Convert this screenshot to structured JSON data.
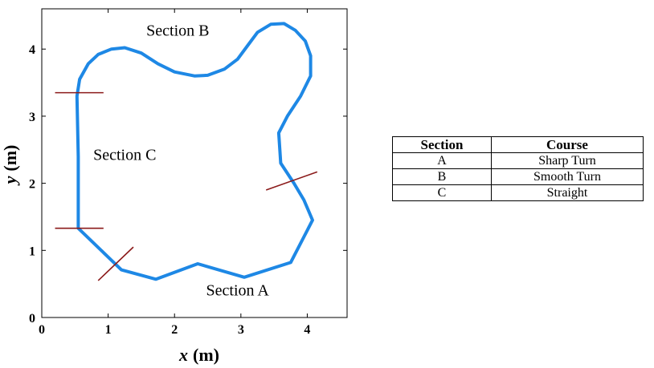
{
  "chart_data": {
    "type": "line",
    "title": "",
    "xlabel": {
      "var": "x",
      "unit": "(m)"
    },
    "ylabel": {
      "var": "y",
      "unit": "(m)"
    },
    "xlim": [
      0,
      4.6
    ],
    "ylim": [
      0,
      4.6
    ],
    "xticks": [
      "0",
      "1",
      "2",
      "3",
      "4"
    ],
    "yticks": [
      "0",
      "1",
      "2",
      "3",
      "4"
    ],
    "grid": false,
    "line_color": "#1e88e5",
    "marker_color": "#8b1a1a",
    "series": [
      {
        "points": [
          [
            0.55,
            1.33
          ],
          [
            0.55,
            2.4
          ],
          [
            0.53,
            3.3
          ],
          [
            0.57,
            3.55
          ],
          [
            0.7,
            3.78
          ],
          [
            0.85,
            3.92
          ],
          [
            1.05,
            4.0
          ],
          [
            1.25,
            4.02
          ],
          [
            1.5,
            3.94
          ],
          [
            1.75,
            3.78
          ],
          [
            2.0,
            3.66
          ],
          [
            2.3,
            3.6
          ],
          [
            2.5,
            3.61
          ],
          [
            2.75,
            3.7
          ],
          [
            2.95,
            3.85
          ],
          [
            3.1,
            4.05
          ],
          [
            3.25,
            4.25
          ],
          [
            3.45,
            4.37
          ],
          [
            3.65,
            4.38
          ],
          [
            3.82,
            4.28
          ],
          [
            3.97,
            4.12
          ],
          [
            4.05,
            3.9
          ],
          [
            4.05,
            3.6
          ],
          [
            3.9,
            3.3
          ],
          [
            3.7,
            3.0
          ],
          [
            3.57,
            2.75
          ],
          [
            3.6,
            2.3
          ],
          [
            3.8,
            2.0
          ],
          [
            3.95,
            1.75
          ],
          [
            4.08,
            1.45
          ],
          [
            3.75,
            0.82
          ],
          [
            3.05,
            0.6
          ],
          [
            2.35,
            0.8
          ],
          [
            1.72,
            0.57
          ],
          [
            1.2,
            0.71
          ],
          [
            0.55,
            1.33
          ]
        ]
      }
    ],
    "boundary_markers": [
      {
        "p1": [
          0.2,
          1.33
        ],
        "p2": [
          0.93,
          1.33
        ]
      },
      {
        "p1": [
          0.2,
          3.35
        ],
        "p2": [
          0.93,
          3.35
        ]
      },
      {
        "p1": [
          0.85,
          0.55
        ],
        "p2": [
          1.38,
          1.05
        ]
      },
      {
        "p1": [
          3.38,
          1.9
        ],
        "p2": [
          4.15,
          2.17
        ]
      }
    ],
    "annotations": [
      {
        "text": "Section B",
        "x": 2.05,
        "y": 4.2
      },
      {
        "text": "Section C",
        "x": 1.25,
        "y": 2.35
      },
      {
        "text": "Section A",
        "x": 2.95,
        "y": 0.33
      }
    ]
  },
  "table": {
    "headers": [
      "Section",
      "Course"
    ],
    "rows": [
      [
        "A",
        "Sharp Turn"
      ],
      [
        "B",
        "Smooth Turn"
      ],
      [
        "C",
        "Straight"
      ]
    ]
  }
}
